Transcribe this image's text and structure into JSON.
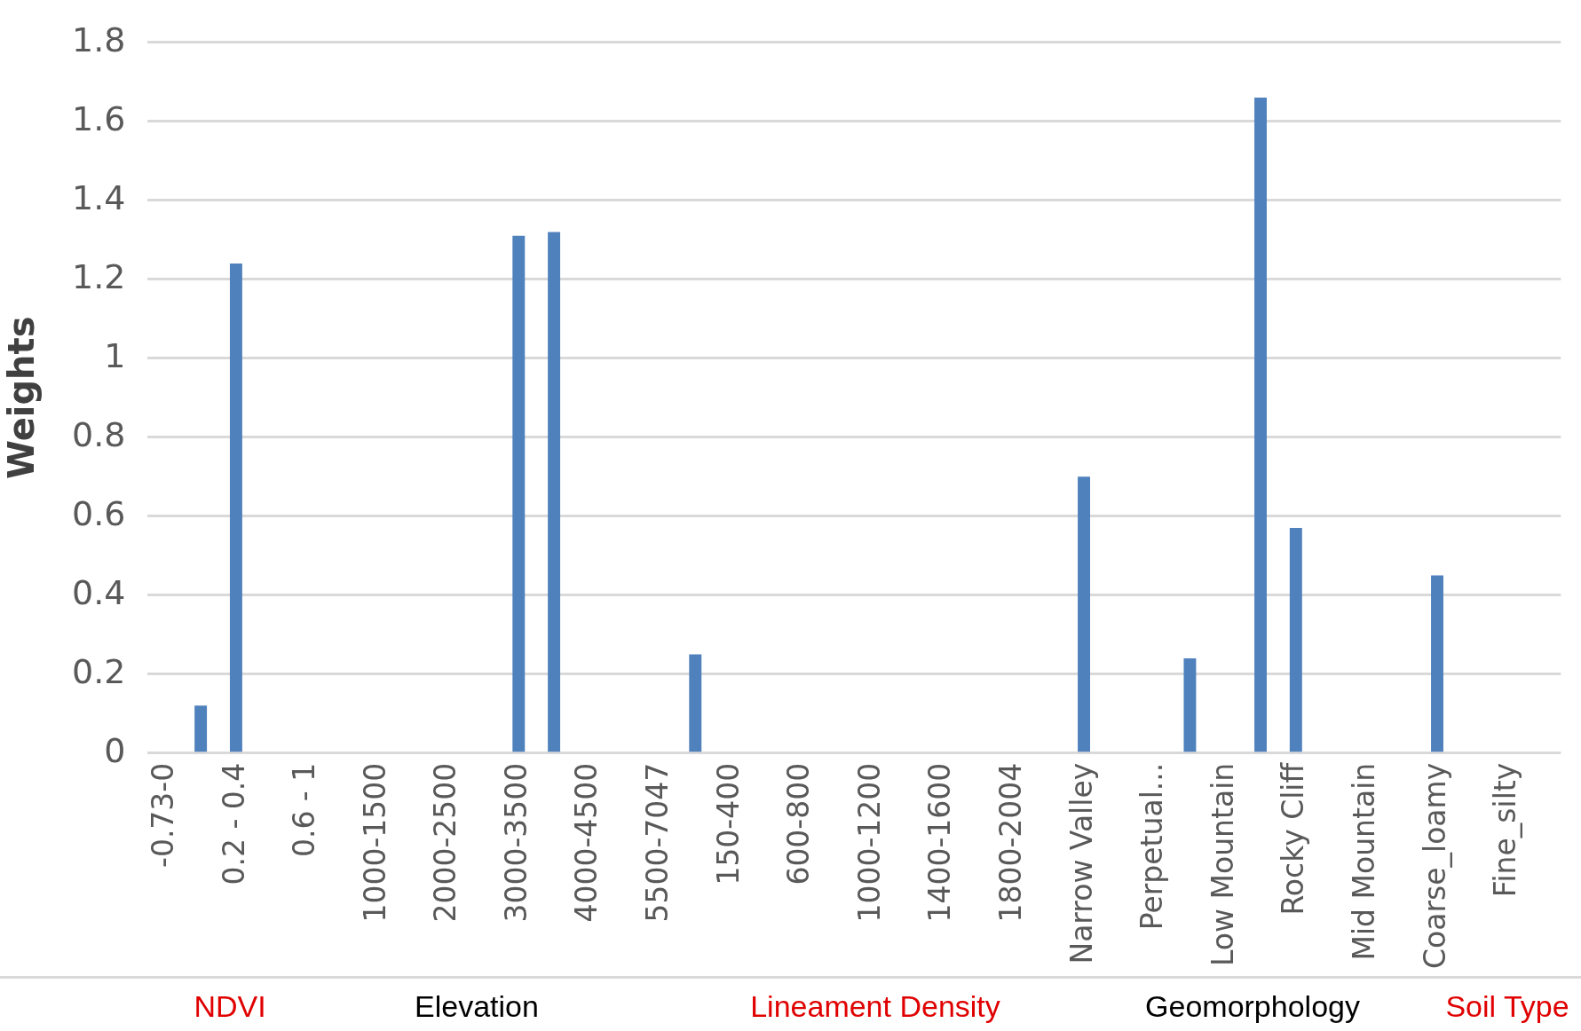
{
  "chart_data": {
    "type": "bar",
    "ylabel": "Weights",
    "categories": [
      "-0.73-0",
      null,
      "0.2 - 0.4",
      null,
      "0.6 - 1",
      null,
      "1000-1500",
      null,
      "2000-2500",
      null,
      "3000-3500",
      null,
      "4000-4500",
      null,
      "5500-7047",
      null,
      "150-400",
      null,
      "600-800",
      null,
      "1000-1200",
      null,
      "1400-1600",
      null,
      "1800-2004",
      null,
      "Narrow Valley",
      null,
      "Perpetual...",
      null,
      "Low Mountain",
      null,
      "Rocky Cliff",
      null,
      "Mid Mountain",
      null,
      "Coarse_loamy",
      null,
      "Fine_silty",
      null
    ],
    "values": [
      0,
      0.12,
      1.24,
      0,
      0,
      0,
      0,
      0,
      0,
      0,
      1.31,
      1.32,
      0,
      null,
      null,
      0.25,
      0,
      0,
      0,
      0,
      0,
      0,
      0,
      0,
      0,
      null,
      0.7,
      0,
      null,
      0.24,
      0,
      1.66,
      0.57,
      0,
      0,
      0,
      0.45,
      null,
      0,
      null
    ],
    "color": "#4f81bd",
    "ylim": [
      0,
      1.8
    ],
    "yticks": [
      0,
      0.2,
      0.4,
      0.6,
      0.8,
      1,
      1.2,
      1.4,
      1.6,
      1.8
    ],
    "grid": "y",
    "legend": false,
    "annotations": [
      "NDVI",
      "Elevation",
      "Lineament Density",
      "Geomorphology",
      "Soil Type"
    ]
  }
}
